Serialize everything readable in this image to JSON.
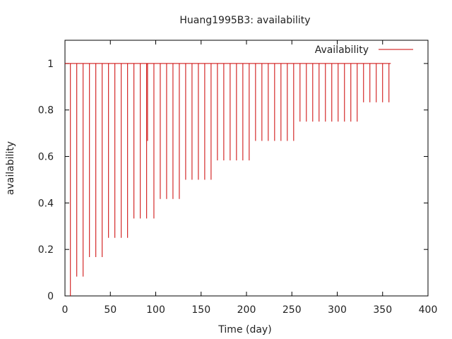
{
  "chart_data": {
    "type": "line",
    "title": "Huang1995B3: availability",
    "xlabel": "Time (day)",
    "ylabel": "availability",
    "xlim": [
      0,
      400
    ],
    "ylim": [
      0,
      1.1
    ],
    "x_ticks": [
      0,
      50,
      100,
      150,
      200,
      250,
      300,
      350,
      400
    ],
    "y_ticks": [
      0,
      0.2,
      0.4,
      0.6,
      0.8,
      1
    ],
    "x_tick_labels": [
      "0",
      "50",
      "100",
      "150",
      "200",
      "250",
      "300",
      "350",
      "400"
    ],
    "y_tick_labels": [
      "0",
      "0.2",
      "0.4",
      "0.6",
      "0.8",
      "1"
    ],
    "grid": false,
    "legend_position": "top-right",
    "series": [
      {
        "name": "Availability",
        "color": "#cc0000",
        "style": "impulse-dips-from-1",
        "x": [
          0,
          6,
          13,
          20,
          27,
          34,
          41,
          48,
          55,
          62,
          69,
          76,
          83,
          90,
          91,
          98,
          105,
          112,
          119,
          126,
          133,
          140,
          147,
          154,
          161,
          168,
          175,
          182,
          189,
          196,
          203,
          210,
          217,
          224,
          231,
          238,
          245,
          252,
          259,
          266,
          273,
          280,
          287,
          294,
          301,
          308,
          315,
          322,
          329,
          336,
          343,
          350,
          357,
          359
        ],
        "y": [
          1,
          0.0,
          0.083,
          0.083,
          0.167,
          0.167,
          0.167,
          0.25,
          0.25,
          0.25,
          0.25,
          0.333,
          0.333,
          0.333,
          0.667,
          0.333,
          0.417,
          0.417,
          0.417,
          0.417,
          0.5,
          0.5,
          0.5,
          0.5,
          0.5,
          0.583,
          0.583,
          0.583,
          0.583,
          0.583,
          0.583,
          0.667,
          0.667,
          0.667,
          0.667,
          0.667,
          0.667,
          0.667,
          0.75,
          0.75,
          0.75,
          0.75,
          0.75,
          0.75,
          0.75,
          0.75,
          0.75,
          0.75,
          0.833,
          0.833,
          0.833,
          0.833,
          0.833,
          1
        ]
      }
    ]
  }
}
